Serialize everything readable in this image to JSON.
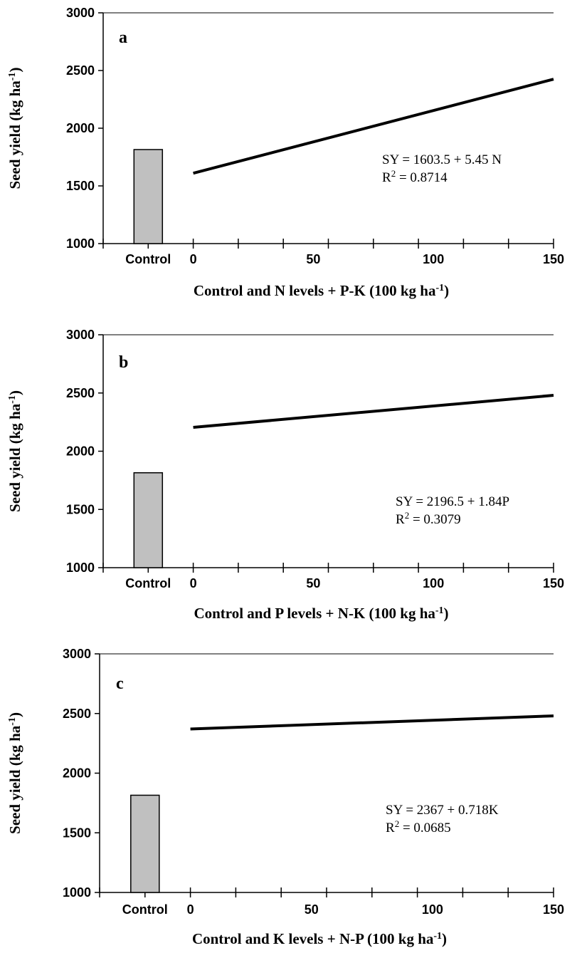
{
  "chart_data": [
    {
      "type": "bar+line",
      "panel_label": "a",
      "ylabel": "Seed yield  (kg ha",
      "ylabel_sup": "-1",
      "ylabel_end": ")",
      "xlabel": "Control and N levels + P-K (100 kg ha",
      "xlabel_sup": "-1",
      "xlabel_end": ")",
      "ylim": [
        1000,
        3000
      ],
      "yticks": [
        1000,
        1500,
        2000,
        2500,
        3000
      ],
      "xtick_labels": [
        "Control",
        "0",
        "50",
        "100",
        "150"
      ],
      "bar": {
        "category": "Control",
        "value": 1815,
        "color": "#c0c0c0"
      },
      "line": {
        "x": [
          0,
          150
        ],
        "y": [
          1610,
          2425
        ]
      },
      "equation": "SY = 1603.5 + 5.45 N",
      "r2_label": "R",
      "r2_sup": "2",
      "r2_value": " = 0.8714"
    },
    {
      "type": "bar+line",
      "panel_label": "b",
      "ylabel": "Seed yield  (kg ha",
      "ylabel_sup": "-1",
      "ylabel_end": ")",
      "xlabel": "Control and P levels + N-K (100 kg ha",
      "xlabel_sup": "-1",
      "xlabel_end": ")",
      "ylim": [
        1000,
        3000
      ],
      "yticks": [
        1000,
        1500,
        2000,
        2500,
        3000
      ],
      "xtick_labels": [
        "Control",
        "0",
        "50",
        "100",
        "150"
      ],
      "bar": {
        "category": "Control",
        "value": 1815,
        "color": "#c0c0c0"
      },
      "line": {
        "x": [
          0,
          150
        ],
        "y": [
          2205,
          2480
        ]
      },
      "equation": "SY = 2196.5 + 1.84P",
      "r2_label": "R",
      "r2_sup": "2",
      "r2_value": " = 0.3079"
    },
    {
      "type": "bar+line",
      "panel_label": "c",
      "ylabel": "Seed yield  (kg ha",
      "ylabel_sup": "-1",
      "ylabel_end": ")",
      "xlabel": "Control and K levels + N-P  (100 kg ha",
      "xlabel_sup": "-1",
      "xlabel_end": ")",
      "ylim": [
        1000,
        3000
      ],
      "yticks": [
        1000,
        1500,
        2000,
        2500,
        3000
      ],
      "xtick_labels": [
        "Control",
        "0",
        "50",
        "100",
        "150"
      ],
      "bar": {
        "category": "Control",
        "value": 1815,
        "color": "#c0c0c0"
      },
      "line": {
        "x": [
          0,
          150
        ],
        "y": [
          2370,
          2480
        ]
      },
      "equation": "SY = 2367 + 0.718K",
      "r2_label": "R",
      "r2_sup": "2",
      "r2_value": " = 0.0685"
    }
  ]
}
